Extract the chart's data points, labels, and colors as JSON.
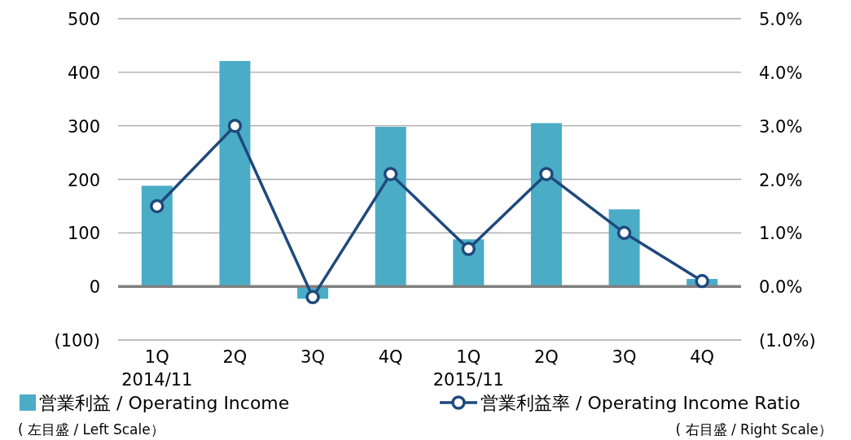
{
  "chart_data": {
    "type": "bar",
    "categories": [
      "1Q\n2014/11",
      "2Q",
      "3Q",
      "4Q",
      "1Q\n2015/11",
      "2Q",
      "3Q",
      "4Q"
    ],
    "series": [
      {
        "name": "営業利益 / Operating Income",
        "color": "#4bacc6",
        "values": [
          188,
          421,
          -23,
          298,
          88,
          305,
          144,
          14
        ]
      },
      {
        "name": "営業利益率 / Operating Income Ratio",
        "type": "line",
        "axis": "y2",
        "color": "#1f497d",
        "marker": "circle",
        "values": [
          1.5,
          3.0,
          -0.2,
          2.1,
          0.7,
          2.1,
          1.0,
          0.1
        ]
      }
    ],
    "ylim": [
      -100,
      500
    ],
    "yticks": [
      {
        "value": -100,
        "label": "(100)"
      },
      0,
      100,
      200,
      300,
      400,
      500
    ],
    "y2lim": [
      -1,
      5
    ],
    "y2ticks": [
      {
        "value": -1,
        "label": "(1.0%)"
      },
      {
        "value": 0,
        "label": "0.0%"
      },
      {
        "value": 1,
        "label": "1.0%"
      },
      {
        "value": 2,
        "label": "2.0%"
      },
      {
        "value": 3,
        "label": "3.0%"
      },
      {
        "value": 4,
        "label": "4.0%"
      },
      {
        "value": 5,
        "label": "5.0%"
      }
    ],
    "grid": "y",
    "legend": "bottom",
    "annotations": [
      "( 左目盛 / Left Scale）",
      "( 右目盛 / Right Scale）"
    ]
  }
}
